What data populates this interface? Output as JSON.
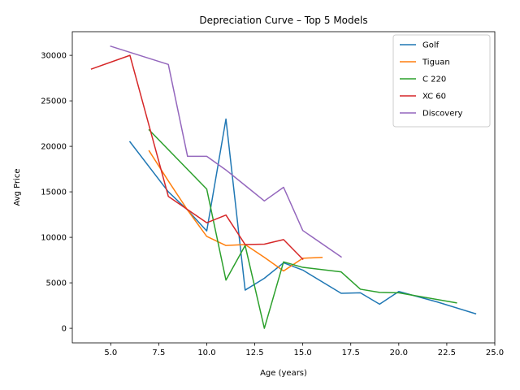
{
  "chart_data": {
    "type": "line",
    "title": "Depreciation Curve – Top 5 Models",
    "xlabel": "Age (years)",
    "ylabel": "Avg Price",
    "xlim": [
      3,
      25
    ],
    "ylim": [
      -1600,
      32600
    ],
    "xticks": [
      5.0,
      7.5,
      10.0,
      12.5,
      15.0,
      17.5,
      20.0,
      22.5,
      25.0
    ],
    "xtick_labels": [
      "5.0",
      "7.5",
      "10.0",
      "12.5",
      "15.0",
      "17.5",
      "20.0",
      "22.5",
      "25.0"
    ],
    "yticks": [
      0,
      5000,
      10000,
      15000,
      20000,
      25000,
      30000
    ],
    "ytick_labels": [
      "0",
      "5000",
      "10000",
      "15000",
      "20000",
      "25000",
      "30000"
    ],
    "grid": false,
    "legend_position": "top-right",
    "series": [
      {
        "name": "Golf",
        "color": "#1f77b4",
        "x": [
          6,
          8,
          9,
          10,
          11,
          12,
          13,
          14,
          15,
          17,
          18,
          19,
          20,
          22,
          24
        ],
        "y": [
          20500,
          15000,
          13000,
          10700,
          23000,
          4200,
          5500,
          7200,
          6400,
          3850,
          3900,
          2650,
          4050,
          2900,
          1600
        ]
      },
      {
        "name": "Tiguan",
        "color": "#ff7f0e",
        "x": [
          7,
          8,
          9,
          10,
          11,
          12,
          13,
          14,
          15,
          16
        ],
        "y": [
          19500,
          16200,
          13000,
          10100,
          9100,
          9200,
          7800,
          6300,
          7700,
          7800
        ]
      },
      {
        "name": "C 220",
        "color": "#2ca02c",
        "x": [
          7,
          10,
          11,
          12,
          13,
          14,
          15,
          17,
          18,
          19,
          20,
          23
        ],
        "y": [
          21800,
          15300,
          5300,
          9100,
          0,
          7300,
          6700,
          6200,
          4300,
          3950,
          3900,
          2800
        ]
      },
      {
        "name": "XC 60",
        "color": "#d62728",
        "x": [
          4,
          6,
          8,
          10,
          11,
          12,
          13,
          14,
          15
        ],
        "y": [
          28500,
          30000,
          14500,
          11600,
          12450,
          9200,
          9250,
          9750,
          7600
        ]
      },
      {
        "name": "Discovery",
        "color": "#9467bd",
        "x": [
          5,
          8,
          9,
          10,
          11,
          12,
          13,
          14,
          15,
          17
        ],
        "y": [
          31000,
          29000,
          18900,
          18900,
          17400,
          15700,
          14000,
          15500,
          10750,
          7850
        ]
      }
    ]
  }
}
